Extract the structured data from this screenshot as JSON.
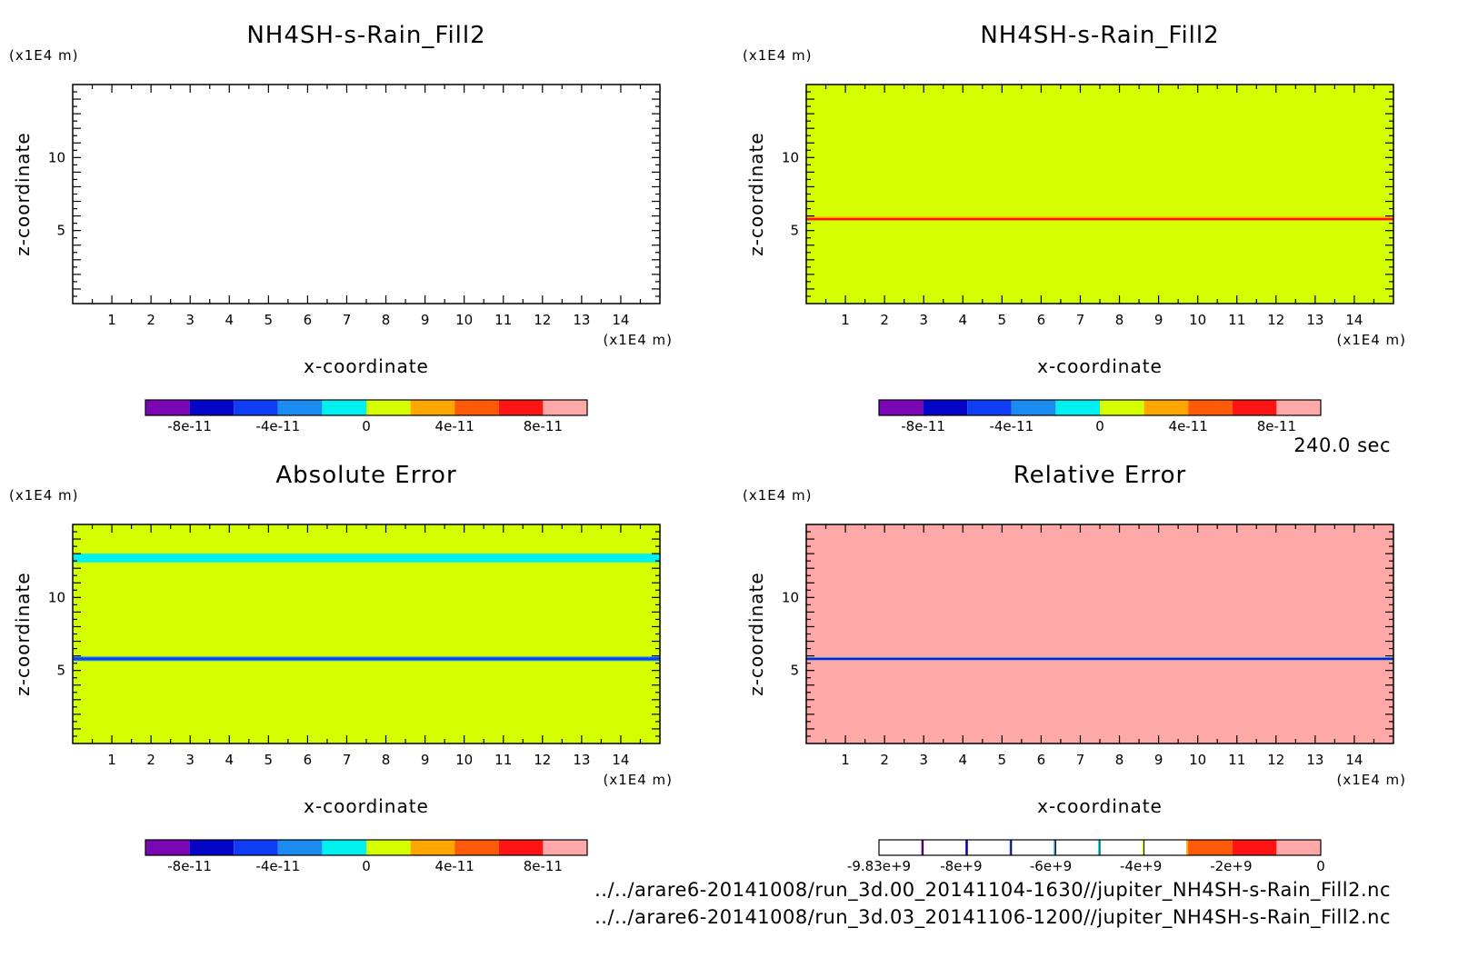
{
  "figure": {
    "time_label": "240.0 sec",
    "files": [
      "../../arare6-20141008/run_3d.00_20141104-1630//jupiter_NH4SH-s-Rain_Fill2.nc",
      "../../arare6-20141008/run_3d.03_20141106-1200//jupiter_NH4SH-s-Rain_Fill2.nc"
    ],
    "colors": {
      "palette11": [
        "#7a05b3",
        "#0505c8",
        "#0f3cf5",
        "#1a8cf0",
        "#00f0f0",
        "#d4ff00",
        "#ffa600",
        "#ff5a08",
        "#ff1414",
        "#ffa8a8"
      ]
    }
  },
  "chart_data": [
    {
      "type": "heatmap",
      "title": "NH4SH-s-Rain_Fill2",
      "xlabel": "x-coordinate",
      "ylabel": "z-coordinate",
      "x_unit": "(x1E4 m)",
      "y_unit": "(x1E4 m)",
      "xlim": [
        0,
        15
      ],
      "ylim": [
        0,
        15
      ],
      "x_ticks": [
        "1",
        "2",
        "3",
        "4",
        "5",
        "6",
        "7",
        "8",
        "9",
        "10",
        "11",
        "12",
        "13",
        "14"
      ],
      "y_ticks": [
        "5",
        "10"
      ],
      "background": "#ffffff",
      "bands": [],
      "colorbar": {
        "colors": [
          "#7a05b3",
          "#0505c8",
          "#0f3cf5",
          "#1a8cf0",
          "#00f0f0",
          "#d4ff00",
          "#ffa600",
          "#ff5a08",
          "#ff1414",
          "#ffa8a8"
        ],
        "outlined_cells": [],
        "ticks": [
          {
            "label": "-8e-11",
            "pos": 0.1
          },
          {
            "label": "-4e-11",
            "pos": 0.3
          },
          {
            "label": "0",
            "pos": 0.5
          },
          {
            "label": "4e-11",
            "pos": 0.7
          },
          {
            "label": "8e-11",
            "pos": 0.9
          }
        ]
      }
    },
    {
      "type": "heatmap",
      "title": "NH4SH-s-Rain_Fill2",
      "xlabel": "x-coordinate",
      "ylabel": "z-coordinate",
      "x_unit": "(x1E4 m)",
      "y_unit": "(x1E4 m)",
      "xlim": [
        0,
        15
      ],
      "ylim": [
        0,
        15
      ],
      "x_ticks": [
        "1",
        "2",
        "3",
        "4",
        "5",
        "6",
        "7",
        "8",
        "9",
        "10",
        "11",
        "12",
        "13",
        "14"
      ],
      "y_ticks": [
        "5",
        "10"
      ],
      "background": "#d4ff00",
      "bands": [
        {
          "z0": 5.85,
          "z1": 5.95,
          "color": "#ffa600"
        },
        {
          "z0": 5.7,
          "z1": 5.85,
          "color": "#ff1414"
        }
      ],
      "colorbar": {
        "colors": [
          "#7a05b3",
          "#0505c8",
          "#0f3cf5",
          "#1a8cf0",
          "#00f0f0",
          "#d4ff00",
          "#ffa600",
          "#ff5a08",
          "#ff1414",
          "#ffa8a8"
        ],
        "outlined_cells": [],
        "ticks": [
          {
            "label": "-8e-11",
            "pos": 0.1
          },
          {
            "label": "-4e-11",
            "pos": 0.3
          },
          {
            "label": "0",
            "pos": 0.5
          },
          {
            "label": "4e-11",
            "pos": 0.7
          },
          {
            "label": "8e-11",
            "pos": 0.9
          }
        ]
      }
    },
    {
      "type": "heatmap",
      "title": "Absolute Error",
      "xlabel": "x-coordinate",
      "ylabel": "z-coordinate",
      "x_unit": "(x1E4 m)",
      "y_unit": "(x1E4 m)",
      "xlim": [
        0,
        15
      ],
      "ylim": [
        0,
        15
      ],
      "x_ticks": [
        "1",
        "2",
        "3",
        "4",
        "5",
        "6",
        "7",
        "8",
        "9",
        "10",
        "11",
        "12",
        "13",
        "14"
      ],
      "y_ticks": [
        "5",
        "10"
      ],
      "background": "#d4ff00",
      "bands": [
        {
          "z0": 12.4,
          "z1": 13.0,
          "color": "#00f0f0"
        },
        {
          "z0": 5.65,
          "z1": 5.95,
          "color": "#1a8cf0"
        },
        {
          "z0": 5.72,
          "z1": 5.88,
          "color": "#0f3cf5"
        }
      ],
      "colorbar": {
        "colors": [
          "#7a05b3",
          "#0505c8",
          "#0f3cf5",
          "#1a8cf0",
          "#00f0f0",
          "#d4ff00",
          "#ffa600",
          "#ff5a08",
          "#ff1414",
          "#ffa8a8"
        ],
        "outlined_cells": [],
        "ticks": [
          {
            "label": "-8e-11",
            "pos": 0.1
          },
          {
            "label": "-4e-11",
            "pos": 0.3
          },
          {
            "label": "0",
            "pos": 0.5
          },
          {
            "label": "4e-11",
            "pos": 0.7
          },
          {
            "label": "8e-11",
            "pos": 0.9
          }
        ]
      }
    },
    {
      "type": "heatmap",
      "title": "Relative Error",
      "xlabel": "x-coordinate",
      "ylabel": "z-coordinate",
      "x_unit": "(x1E4 m)",
      "y_unit": "(x1E4 m)",
      "xlim": [
        0,
        15
      ],
      "ylim": [
        0,
        15
      ],
      "x_ticks": [
        "1",
        "2",
        "3",
        "4",
        "5",
        "6",
        "7",
        "8",
        "9",
        "10",
        "11",
        "12",
        "13",
        "14"
      ],
      "y_ticks": [
        "5",
        "10"
      ],
      "background": "#ffa8a8",
      "bands": [
        {
          "z0": 5.7,
          "z1": 5.9,
          "color": "#1a8cf0"
        },
        {
          "z0": 5.76,
          "z1": 5.84,
          "color": "#0505c8"
        }
      ],
      "colorbar": {
        "colors": [
          "#7a05b3",
          "#0505c8",
          "#0f3cf5",
          "#1a8cf0",
          "#00f0f0",
          "#d4ff00",
          "#ffa600",
          "#ff5a08",
          "#ff1414",
          "#ffa8a8"
        ],
        "outlined_cells": [
          0,
          1,
          2,
          3,
          4,
          5,
          6
        ],
        "ticks": [
          {
            "label": "-9.83e+9",
            "pos": 0.0
          },
          {
            "label": "-8e+9",
            "pos": 0.186
          },
          {
            "label": "-6e+9",
            "pos": 0.389
          },
          {
            "label": "-4e+9",
            "pos": 0.593
          },
          {
            "label": "-2e+9",
            "pos": 0.797
          },
          {
            "label": "0",
            "pos": 1.0
          }
        ]
      }
    }
  ]
}
